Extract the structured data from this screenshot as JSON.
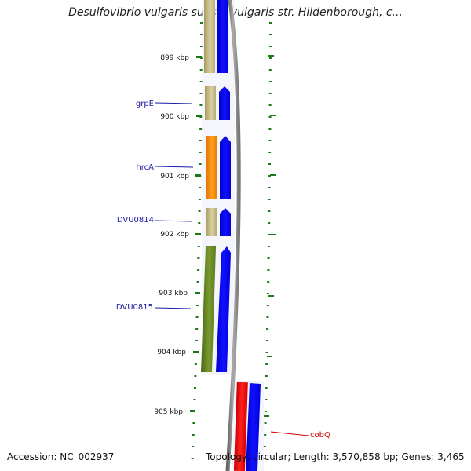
{
  "title": "Desulfovibrio vulgaris subsp. vulgaris str. Hildenborough, c...",
  "footer": {
    "accession": "Accession: NC_002937",
    "topology": "Topology: circular; Length: 3,570,858 bp; Genes: 3,465"
  },
  "kbp_ticks": [
    "899 kbp",
    "900 kbp",
    "901 kbp",
    "902 kbp",
    "903 kbp",
    "904 kbp",
    "905 kbp"
  ],
  "gene_labels": [
    {
      "label": "grpE",
      "color": "#1a1aa6"
    },
    {
      "label": "hrcA",
      "color": "#1a1aa6"
    },
    {
      "label": "DVU0814",
      "color": "#1a1aa6"
    },
    {
      "label": "DVU0815",
      "color": "#1a1aa6"
    },
    {
      "label": "cobQ",
      "color": "#cc0000"
    }
  ],
  "colors": {
    "cog_unknown": "#c8c090",
    "cog_orange": "#ff8c00",
    "cog_green": "#5a7a1e",
    "cds_forward_reverse": "#0000ee",
    "cog_red": "#ee0000",
    "backbone": "#888888",
    "tick_green": "#1a7a1a",
    "forward_label": "#1a1aa6",
    "reverse_label": "#cc0000"
  }
}
